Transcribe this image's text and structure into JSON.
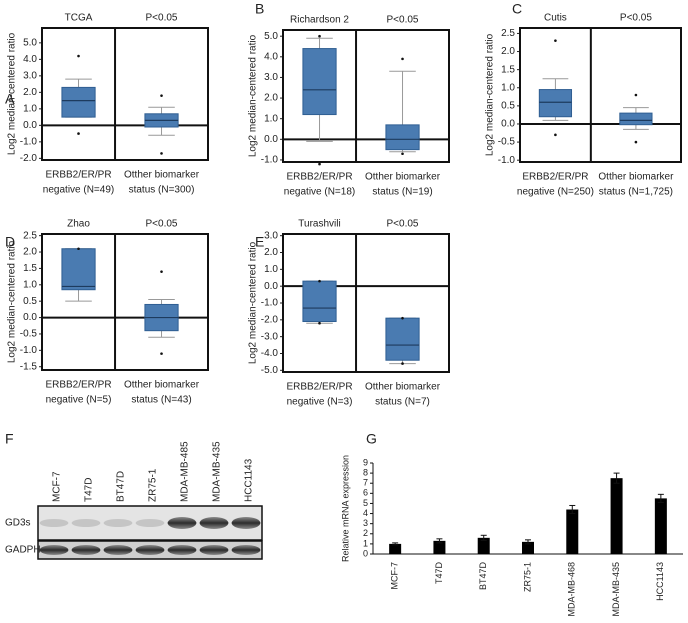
{
  "chart_data": [
    {
      "type": "box",
      "panel": "A",
      "title": "TCGA",
      "annotation": "P<0.05",
      "ylabel": "Log2 median-centered ratio",
      "categories": [
        [
          "ERBB2/ER/PR",
          "negative (N=49)"
        ],
        [
          "Otther biomarker",
          "status (N=300)"
        ]
      ],
      "boxes": [
        {
          "whisker_low": 0.5,
          "q1": 0.5,
          "median": 1.5,
          "q3": 2.3,
          "whisker_high": 2.8,
          "outliers": [
            4.2,
            -0.5
          ]
        },
        {
          "whisker_low": -0.6,
          "q1": -0.1,
          "median": 0.3,
          "q3": 0.7,
          "whisker_high": 1.1,
          "outliers": [
            1.8,
            -1.7
          ]
        }
      ],
      "color": "#4a7bb1",
      "ylim": [
        -2.1,
        5.9
      ],
      "yticks": [
        {
          "value": -2,
          "label": "-2.0"
        },
        {
          "value": -1,
          "label": "-1.0"
        },
        {
          "value": 0,
          "label": "0.0"
        },
        {
          "value": 1,
          "label": "1.0"
        },
        {
          "value": 2,
          "label": "2.0"
        },
        {
          "value": 3,
          "label": "3.0"
        },
        {
          "value": 4,
          "label": "4.0"
        },
        {
          "value": 5,
          "label": "5.0"
        }
      ]
    },
    {
      "type": "box",
      "panel": "B",
      "title": "Richardson 2",
      "annotation": "P<0.05",
      "ylabel": "Log2 median-centered ratio",
      "categories": [
        [
          "ERBB2/ER/PR",
          "negative (N=18)"
        ],
        [
          "Otther biomarker",
          "status (N=19)"
        ]
      ],
      "boxes": [
        {
          "whisker_low": -0.1,
          "q1": 1.2,
          "median": 2.4,
          "q3": 4.4,
          "whisker_high": 4.9,
          "outliers": [
            5.0,
            -1.2
          ]
        },
        {
          "whisker_low": -0.6,
          "q1": -0.5,
          "median": 0.0,
          "q3": 0.7,
          "whisker_high": 3.3,
          "outliers": [
            3.9,
            -0.7
          ]
        }
      ],
      "color": "#4a7bb1",
      "ylim": [
        -1.1,
        5.3
      ],
      "yticks": [
        {
          "value": -1,
          "label": "-1.0"
        },
        {
          "value": 0,
          "label": "0.0"
        },
        {
          "value": 1,
          "label": "1.0"
        },
        {
          "value": 2,
          "label": "2.0"
        },
        {
          "value": 3,
          "label": "3.0"
        },
        {
          "value": 4,
          "label": "4.0"
        },
        {
          "value": 5,
          "label": "5.0"
        }
      ]
    },
    {
      "type": "box",
      "panel": "C",
      "title": "Cutis",
      "annotation": "P<0.05",
      "ylabel": "Log2 median-centered ratio",
      "categories": [
        [
          "ERBB2/ER/PR",
          "negative (N=250)"
        ],
        [
          "Otther biomarker",
          "status (N=1,725)"
        ]
      ],
      "boxes": [
        {
          "whisker_low": 0.1,
          "q1": 0.2,
          "median": 0.6,
          "q3": 0.95,
          "whisker_high": 1.25,
          "outliers": [
            2.3,
            -0.3
          ]
        },
        {
          "whisker_low": -0.15,
          "q1": -0.02,
          "median": 0.1,
          "q3": 0.3,
          "whisker_high": 0.45,
          "outliers": [
            0.8,
            -0.5
          ]
        }
      ],
      "color": "#4a7bb1",
      "ylim": [
        -1.05,
        2.65
      ],
      "yticks": [
        {
          "value": -1,
          "label": "-1.0"
        },
        -0.5,
        {
          "value": 0,
          "label": "0.0"
        },
        0.5,
        {
          "value": 1,
          "label": "1.0"
        },
        1.5,
        {
          "value": 2,
          "label": "2.0"
        },
        2.5
      ]
    },
    {
      "type": "box",
      "panel": "D",
      "title": "Zhao",
      "annotation": "P<0.05",
      "ylabel": "Log2 median-centered ratio",
      "categories": [
        [
          "ERBB2/ER/PR",
          "negative (N=5)"
        ],
        [
          "Otther biomarker",
          "status (N=43)"
        ]
      ],
      "boxes": [
        {
          "whisker_low": 0.5,
          "q1": 0.85,
          "median": 0.95,
          "q3": 2.1,
          "whisker_high": 2.1,
          "outliers": [
            2.1
          ]
        },
        {
          "whisker_low": -0.6,
          "q1": -0.4,
          "median": 0.0,
          "q3": 0.4,
          "whisker_high": 0.55,
          "outliers": [
            1.4,
            -1.1
          ]
        }
      ],
      "color": "#4a7bb1",
      "ylim": [
        -1.6,
        2.55
      ],
      "yticks": [
        -1.5,
        {
          "value": -1,
          "label": "-1.0"
        },
        -0.5,
        {
          "value": 0,
          "label": "0.0"
        },
        0.5,
        {
          "value": 1,
          "label": "1.0"
        },
        1.5,
        {
          "value": 2,
          "label": "2.0"
        },
        2.5
      ]
    },
    {
      "type": "box",
      "panel": "E",
      "title": "Turashvili",
      "annotation": "P<0.05",
      "ylabel": "Log2 median-centered ratio",
      "categories": [
        [
          "ERBB2/ER/PR",
          "negative (N=3)"
        ],
        [
          "Otther biomarker",
          "status (N=7)"
        ]
      ],
      "boxes": [
        {
          "whisker_low": -2.2,
          "q1": -2.1,
          "median": -1.3,
          "q3": 0.3,
          "whisker_high": 0.3,
          "outliers": [
            0.3,
            -2.2
          ]
        },
        {
          "whisker_low": -4.6,
          "q1": -4.4,
          "median": -3.5,
          "q3": -1.9,
          "whisker_high": -1.9,
          "outliers": [
            -1.9,
            -4.6
          ]
        }
      ],
      "color": "#4a7bb1",
      "ylim": [
        -5.1,
        3.1
      ],
      "yticks": [
        {
          "value": -5,
          "label": "-5.0"
        },
        {
          "value": -4,
          "label": "-4.0"
        },
        {
          "value": -3,
          "label": "-3.0"
        },
        {
          "value": -2,
          "label": "-2.0"
        },
        {
          "value": -1,
          "label": "-1.0"
        },
        {
          "value": 0,
          "label": "0.0"
        },
        {
          "value": 1,
          "label": "1.0"
        },
        {
          "value": 2,
          "label": "2.0"
        },
        {
          "value": 3,
          "label": "3.0"
        }
      ]
    },
    {
      "type": "bar",
      "panel": "G",
      "ylabel": "Relative mRNA expression",
      "categories": [
        "MCF-7",
        "T47D",
        "BT47D",
        "ZR75-1",
        "MDA-MB-468",
        "MDA-MB-435",
        "HCC1143"
      ],
      "values": [
        1.0,
        1.3,
        1.6,
        1.2,
        4.4,
        7.5,
        5.5
      ],
      "errors": [
        0.1,
        0.2,
        0.25,
        0.2,
        0.4,
        0.5,
        0.4
      ],
      "color": "#000000",
      "ylim": [
        0,
        9
      ],
      "yticks": [
        0,
        1,
        2,
        3,
        4,
        5,
        6,
        7,
        8,
        9
      ]
    }
  ],
  "blot": {
    "panel": "F",
    "lanes": [
      "MCF-7",
      "T47D",
      "BT47D",
      "ZR75-1",
      "MDA-MB-485",
      "MDA-MB-435",
      "HCC1143"
    ],
    "rows": [
      "GD3s",
      "GADPH"
    ]
  }
}
